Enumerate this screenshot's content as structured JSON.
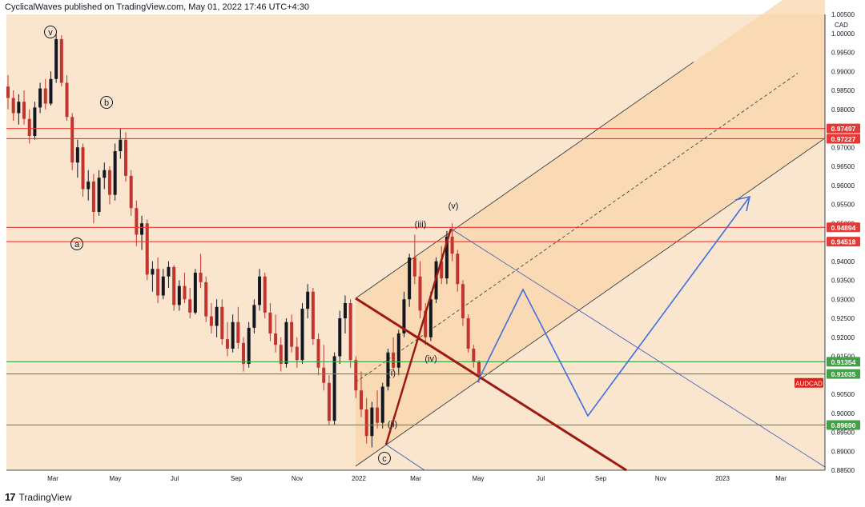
{
  "header": {
    "published_line": "CyclicalWaves published on TradingView.com, May 01, 2022 17:46 UTC+4:30"
  },
  "footer": {
    "logo_text": "17",
    "brand": "TradingView"
  },
  "colors": {
    "background": "#ffffff",
    "plot_bg": "#fae5cf",
    "channel_fill": "#f9d6ac",
    "bull_candle": "#131722",
    "bear_candle": "#c2342f",
    "resistance_line": "#e53935",
    "support_line": "#43a047",
    "trend_line_dark_red": "#9b1b12",
    "projection_blue": "#3d6fe0",
    "pitchfork_line": "#2a2e39"
  },
  "chart_data": {
    "type": "candlestick",
    "symbol_tag": "AUDCAD",
    "currency_label": "CAD",
    "y_axis": {
      "ylim": [
        0.885,
        1.005
      ],
      "ticks": [
        "1.00500",
        "1.00000",
        "0.99500",
        "0.99000",
        "0.98500",
        "0.98000",
        "0.97500",
        "0.97000",
        "0.96500",
        "0.96000",
        "0.95500",
        "0.95000",
        "0.94500",
        "0.94000",
        "0.93500",
        "0.93000",
        "0.92500",
        "0.92000",
        "0.91500",
        "0.91000",
        "0.90500",
        "0.90000",
        "0.89500",
        "0.89000",
        "0.88500"
      ]
    },
    "x_axis": {
      "tick_labels": [
        "Mar",
        "May",
        "Jul",
        "Sep",
        "Nov",
        "2022",
        "Mar",
        "May",
        "Jul",
        "Sep",
        "Nov",
        "2023",
        "Mar"
      ]
    },
    "resistance_levels": [
      {
        "value": 0.97497,
        "label": "0.97497"
      },
      {
        "value": 0.97227,
        "label": "0.97227"
      },
      {
        "value": 0.94894,
        "label": "0.94894"
      },
      {
        "value": 0.94518,
        "label": "0.94518"
      }
    ],
    "support_levels": [
      {
        "value": 0.91354,
        "label": "0.91354"
      },
      {
        "value": 0.91035,
        "label": "0.91035"
      },
      {
        "value": 0.8969,
        "label": "0.89690"
      }
    ],
    "wave_labels": [
      {
        "text": "v",
        "circled": true
      },
      {
        "text": "b",
        "circled": true
      },
      {
        "text": "a",
        "circled": true
      },
      {
        "text": "c",
        "circled": true
      },
      {
        "text": "(v)",
        "circled": false
      },
      {
        "text": "(iii)",
        "circled": false
      },
      {
        "text": "(iv)",
        "circled": false
      },
      {
        "text": "(i)",
        "circled": false
      },
      {
        "text": "(ii)",
        "circled": false
      }
    ],
    "candles": [
      [
        0.986,
        0.989,
        0.98,
        0.983
      ],
      [
        0.983,
        0.985,
        0.977,
        0.979
      ],
      [
        0.979,
        0.984,
        0.976,
        0.982
      ],
      [
        0.982,
        0.985,
        0.976,
        0.9775
      ],
      [
        0.9775,
        0.98,
        0.971,
        0.973
      ],
      [
        0.973,
        0.982,
        0.972,
        0.9805
      ],
      [
        0.9805,
        0.987,
        0.979,
        0.9855
      ],
      [
        0.9855,
        0.988,
        0.98,
        0.9815
      ],
      [
        0.9815,
        0.99,
        0.981,
        0.988
      ],
      [
        0.988,
        0.9998,
        0.987,
        0.9985
      ],
      [
        0.9985,
        0.9995,
        0.986,
        0.987
      ],
      [
        0.987,
        0.989,
        0.977,
        0.978
      ],
      [
        0.978,
        0.979,
        0.964,
        0.966
      ],
      [
        0.966,
        0.972,
        0.962,
        0.97
      ],
      [
        0.97,
        0.971,
        0.957,
        0.959
      ],
      [
        0.959,
        0.964,
        0.956,
        0.961
      ],
      [
        0.961,
        0.963,
        0.95,
        0.953
      ],
      [
        0.953,
        0.964,
        0.952,
        0.962
      ],
      [
        0.962,
        0.966,
        0.959,
        0.964
      ],
      [
        0.964,
        0.965,
        0.955,
        0.9575
      ],
      [
        0.9575,
        0.971,
        0.956,
        0.969
      ],
      [
        0.969,
        0.975,
        0.967,
        0.972
      ],
      [
        0.972,
        0.974,
        0.961,
        0.9625
      ],
      [
        0.9625,
        0.964,
        0.952,
        0.954
      ],
      [
        0.954,
        0.956,
        0.944,
        0.947
      ],
      [
        0.947,
        0.952,
        0.943,
        0.95
      ],
      [
        0.95,
        0.951,
        0.935,
        0.9365
      ],
      [
        0.9365,
        0.94,
        0.932,
        0.938
      ],
      [
        0.938,
        0.941,
        0.929,
        0.931
      ],
      [
        0.931,
        0.938,
        0.93,
        0.936
      ],
      [
        0.936,
        0.94,
        0.933,
        0.9385
      ],
      [
        0.9385,
        0.939,
        0.927,
        0.9285
      ],
      [
        0.9285,
        0.935,
        0.927,
        0.9335
      ],
      [
        0.9335,
        0.937,
        0.929,
        0.93
      ],
      [
        0.93,
        0.933,
        0.925,
        0.9265
      ],
      [
        0.9265,
        0.938,
        0.926,
        0.937
      ],
      [
        0.937,
        0.942,
        0.933,
        0.9345
      ],
      [
        0.9345,
        0.936,
        0.924,
        0.9255
      ],
      [
        0.9255,
        0.929,
        0.921,
        0.923
      ],
      [
        0.923,
        0.93,
        0.92,
        0.928
      ],
      [
        0.928,
        0.93,
        0.918,
        0.9195
      ],
      [
        0.9195,
        0.924,
        0.915,
        0.917
      ],
      [
        0.917,
        0.926,
        0.916,
        0.924
      ],
      [
        0.924,
        0.928,
        0.917,
        0.9185
      ],
      [
        0.9185,
        0.92,
        0.911,
        0.913
      ],
      [
        0.913,
        0.924,
        0.912,
        0.9225
      ],
      [
        0.9225,
        0.93,
        0.921,
        0.9285
      ],
      [
        0.9285,
        0.938,
        0.927,
        0.936
      ],
      [
        0.936,
        0.937,
        0.925,
        0.9265
      ],
      [
        0.9265,
        0.929,
        0.919,
        0.921
      ],
      [
        0.921,
        0.926,
        0.916,
        0.918
      ],
      [
        0.918,
        0.92,
        0.911,
        0.913
      ],
      [
        0.913,
        0.925,
        0.912,
        0.924
      ],
      [
        0.924,
        0.926,
        0.916,
        0.9175
      ],
      [
        0.9175,
        0.92,
        0.912,
        0.914
      ],
      [
        0.914,
        0.929,
        0.913,
        0.9275
      ],
      [
        0.9275,
        0.934,
        0.925,
        0.932
      ],
      [
        0.932,
        0.933,
        0.918,
        0.9195
      ],
      [
        0.9195,
        0.921,
        0.91,
        0.912
      ],
      [
        0.912,
        0.918,
        0.906,
        0.908
      ],
      [
        0.908,
        0.91,
        0.897,
        0.898
      ],
      [
        0.898,
        0.916,
        0.897,
        0.915
      ],
      [
        0.915,
        0.927,
        0.913,
        0.925
      ],
      [
        0.925,
        0.931,
        0.921,
        0.929
      ],
      [
        0.929,
        0.93,
        0.912,
        0.914
      ],
      [
        0.914,
        0.915,
        0.904,
        0.906
      ],
      [
        0.906,
        0.911,
        0.899,
        0.901
      ],
      [
        0.901,
        0.904,
        0.892,
        0.894
      ],
      [
        0.894,
        0.903,
        0.891,
        0.9015
      ],
      [
        0.9015,
        0.906,
        0.896,
        0.8975
      ],
      [
        0.8975,
        0.908,
        0.896,
        0.907
      ],
      [
        0.907,
        0.917,
        0.906,
        0.916
      ],
      [
        0.916,
        0.92,
        0.911,
        0.912
      ],
      [
        0.912,
        0.922,
        0.91,
        0.921
      ],
      [
        0.921,
        0.932,
        0.92,
        0.93
      ],
      [
        0.93,
        0.942,
        0.928,
        0.941
      ],
      [
        0.941,
        0.947,
        0.934,
        0.936
      ],
      [
        0.936,
        0.94,
        0.925,
        0.927
      ],
      [
        0.927,
        0.929,
        0.918,
        0.92
      ],
      [
        0.92,
        0.932,
        0.919,
        0.93
      ],
      [
        0.93,
        0.941,
        0.929,
        0.94
      ],
      [
        0.94,
        0.944,
        0.934,
        0.9355
      ],
      [
        0.9355,
        0.948,
        0.934,
        0.9465
      ],
      [
        0.9465,
        0.95,
        0.94,
        0.942
      ],
      [
        0.942,
        0.943,
        0.932,
        0.934
      ],
      [
        0.934,
        0.935,
        0.923,
        0.925
      ],
      [
        0.925,
        0.926,
        0.916,
        0.917
      ],
      [
        0.917,
        0.918,
        0.912,
        0.9135
      ],
      [
        0.9135,
        0.914,
        0.908,
        0.9095
      ]
    ]
  }
}
